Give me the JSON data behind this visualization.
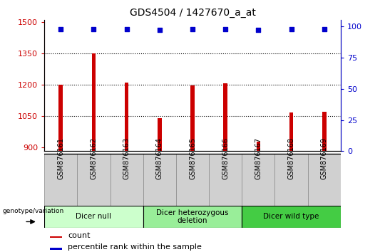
{
  "title": "GDS4504 / 1427670_a_at",
  "samples": [
    "GSM876161",
    "GSM876162",
    "GSM876163",
    "GSM876164",
    "GSM876165",
    "GSM876166",
    "GSM876167",
    "GSM876168",
    "GSM876169"
  ],
  "counts": [
    1200,
    1350,
    1210,
    1040,
    1195,
    1205,
    925,
    1065,
    1070
  ],
  "percentile_ranks": [
    98,
    98,
    98,
    97,
    98,
    98,
    97,
    98,
    98
  ],
  "ylim_left": [
    880,
    1510
  ],
  "ylim_right": [
    0,
    105
  ],
  "yticks_left": [
    900,
    1050,
    1200,
    1350,
    1500
  ],
  "yticks_right": [
    0,
    25,
    50,
    75,
    100
  ],
  "bar_color": "#cc0000",
  "dot_color": "#0000cc",
  "bar_width": 0.12,
  "groups": [
    {
      "label": "Dicer null",
      "indices": [
        0,
        1,
        2
      ],
      "color": "#ccffcc"
    },
    {
      "label": "Dicer heterozygous\ndeletion",
      "indices": [
        3,
        4,
        5
      ],
      "color": "#99ee99"
    },
    {
      "label": "Dicer wild type",
      "indices": [
        6,
        7,
        8
      ],
      "color": "#44cc44"
    }
  ],
  "tick_label_color_left": "#cc0000",
  "tick_label_color_right": "#0000cc",
  "bg_color": "#ffffff",
  "group_colors": [
    "#ccffcc",
    "#99ee99",
    "#44cc44"
  ]
}
